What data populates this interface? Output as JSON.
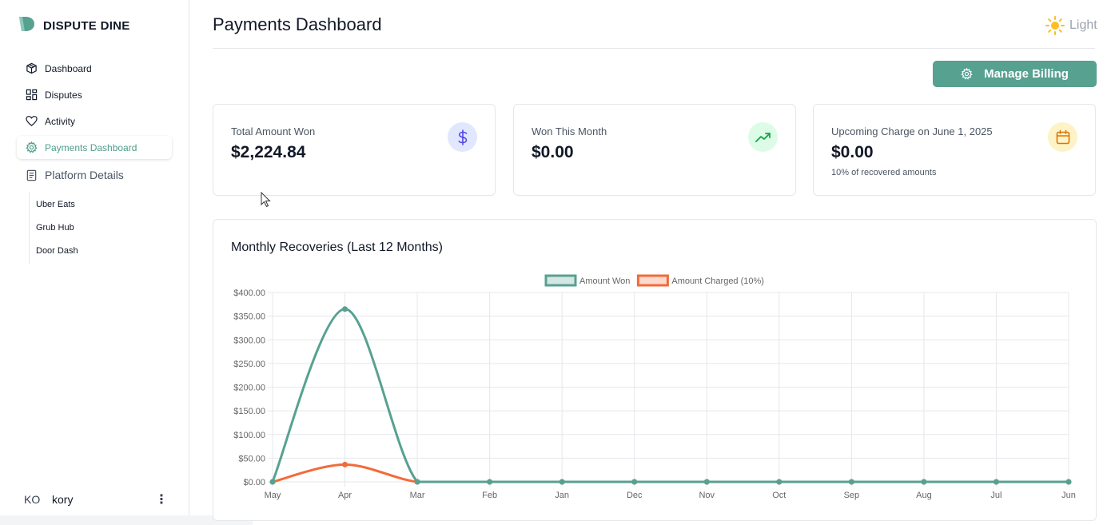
{
  "brand": {
    "name": "DISPUTE DINE",
    "logo_color": "#57a191"
  },
  "sidebar": {
    "items": [
      {
        "label": "Dashboard",
        "icon": "cube-icon"
      },
      {
        "label": "Disputes",
        "icon": "grid-icon"
      },
      {
        "label": "Activity",
        "icon": "heart-icon"
      },
      {
        "label": "Payments Dashboard",
        "icon": "gear-icon",
        "active": true
      }
    ],
    "section": {
      "label": "Platform Details",
      "icon": "document-icon"
    },
    "sub_items": [
      "Uber Eats",
      "Grub Hub",
      "Door Dash"
    ]
  },
  "user": {
    "initials": "KO",
    "name": "kory",
    "menu_icon": "more-vertical-icon"
  },
  "header": {
    "title": "Payments Dashboard",
    "theme_label": "Light",
    "theme_icon": "sun-icon"
  },
  "billing_button": {
    "label": "Manage Billing",
    "icon": "gear-icon"
  },
  "cards": [
    {
      "label": "Total Amount Won",
      "value": "$2,224.84",
      "icon": "dollar-icon",
      "icon_bg": "#e0e7ff",
      "icon_color": "#4f46e5"
    },
    {
      "label": "Won This Month",
      "value": "$0.00",
      "icon": "trending-up-icon",
      "icon_bg": "#dcfce7",
      "icon_color": "#16a34a"
    },
    {
      "label": "Upcoming Charge on June 1, 2025",
      "value": "$0.00",
      "note": "10% of recovered amounts",
      "icon": "calendar-icon",
      "icon_bg": "#fef3c7",
      "icon_color": "#d97706"
    }
  ],
  "chart_title": "Monthly Recoveries (Last 12 Months)",
  "chart_data": {
    "type": "line",
    "categories": [
      "May",
      "Apr",
      "Mar",
      "Feb",
      "Jan",
      "Dec",
      "Nov",
      "Oct",
      "Sep",
      "Aug",
      "Jul",
      "Jun"
    ],
    "series": [
      {
        "name": "Amount Won",
        "color": "#57a191",
        "values": [
          0,
          365,
          0,
          0,
          0,
          0,
          0,
          0,
          0,
          0,
          0,
          0
        ]
      },
      {
        "name": "Amount Charged (10%)",
        "color": "#f26b3a",
        "values": [
          0,
          36.5,
          0,
          0,
          0,
          0,
          0,
          0,
          0,
          0,
          0,
          0
        ]
      }
    ],
    "ylim": [
      0,
      400
    ],
    "yticks": [
      "$0.00",
      "$50.00",
      "$100.00",
      "$150.00",
      "$200.00",
      "$250.00",
      "$300.00",
      "$350.00",
      "$400.00"
    ],
    "grid": true,
    "legend": "top-center"
  }
}
